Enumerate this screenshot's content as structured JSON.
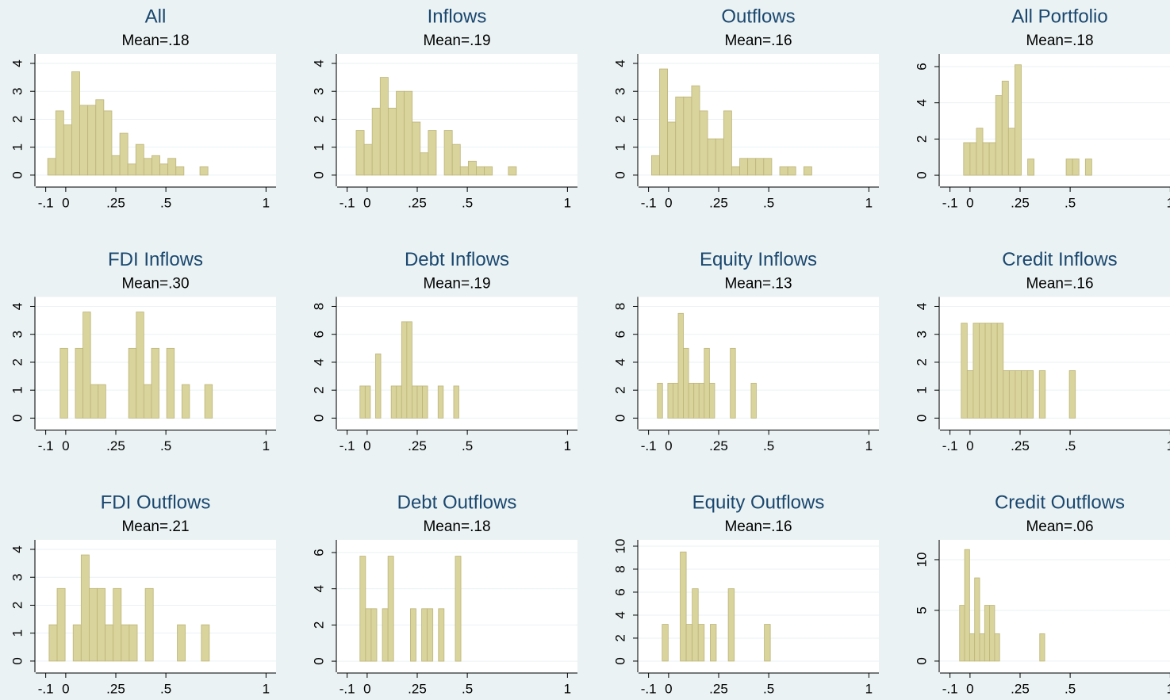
{
  "chart_data": [
    {
      "type": "histogram",
      "title": "All",
      "subtitle": "Mean=.18",
      "color": "#d9d39c",
      "grid": true,
      "bins": [
        -0.09,
        -0.05,
        -0.01,
        0.03,
        0.07,
        0.11,
        0.15,
        0.19,
        0.23,
        0.27,
        0.31,
        0.35,
        0.39,
        0.43,
        0.47,
        0.51,
        0.55,
        0.59,
        0.63,
        0.67,
        0.71
      ],
      "values": [
        0.6,
        2.3,
        1.8,
        3.7,
        2.5,
        2.5,
        2.7,
        2.3,
        0.7,
        1.5,
        0.4,
        1.1,
        0.6,
        0.7,
        0.4,
        0.6,
        0.3,
        0,
        0,
        0.3
      ],
      "xlim": [
        -0.15,
        1.05
      ],
      "xticks": [
        {
          "value": -0.1,
          "label": "-.1"
        },
        0,
        {
          "value": 0.25,
          "label": ".25"
        },
        {
          "value": 0.5,
          "label": ".5"
        },
        1
      ],
      "ylim": [
        -0.4,
        4.34
      ],
      "yticks": [
        0,
        1,
        2,
        3,
        4
      ]
    },
    {
      "type": "histogram",
      "title": "Inflows",
      "subtitle": "Mean=.19",
      "color": "#d9d39c",
      "grid": true,
      "bins": [
        -0.055,
        -0.015,
        0.025,
        0.065,
        0.105,
        0.145,
        0.185,
        0.225,
        0.265,
        0.305,
        0.345,
        0.385,
        0.425,
        0.465,
        0.505,
        0.545,
        0.585,
        0.625,
        0.665,
        0.705,
        0.745
      ],
      "values": [
        1.6,
        1.1,
        2.4,
        3.5,
        2.4,
        3.0,
        3.0,
        1.9,
        0.8,
        1.6,
        0,
        1.6,
        1.1,
        0.3,
        0.5,
        0.3,
        0.3,
        0,
        0,
        0.3
      ],
      "xlim": [
        -0.15,
        1.05
      ],
      "xticks": [
        {
          "value": -0.1,
          "label": "-.1"
        },
        0,
        {
          "value": 0.25,
          "label": ".25"
        },
        {
          "value": 0.5,
          "label": ".5"
        },
        1
      ],
      "ylim": [
        -0.4,
        4.34
      ],
      "yticks": [
        0,
        1,
        2,
        3,
        4
      ]
    },
    {
      "type": "histogram",
      "title": "Outflows",
      "subtitle": "Mean=.16",
      "color": "#d9d39c",
      "grid": true,
      "bins": [
        -0.085,
        -0.045,
        -0.005,
        0.035,
        0.075,
        0.115,
        0.155,
        0.195,
        0.235,
        0.275,
        0.315,
        0.355,
        0.395,
        0.435,
        0.475,
        0.515,
        0.555,
        0.595,
        0.635,
        0.675,
        0.715
      ],
      "values": [
        0.7,
        3.8,
        1.9,
        2.8,
        2.8,
        3.2,
        2.3,
        1.3,
        1.3,
        2.3,
        0.3,
        0.6,
        0.6,
        0.6,
        0.6,
        0,
        0.3,
        0.3,
        0,
        0.3
      ],
      "xlim": [
        -0.15,
        1.05
      ],
      "xticks": [
        {
          "value": -0.1,
          "label": "-.1"
        },
        0,
        {
          "value": 0.25,
          "label": ".25"
        },
        {
          "value": 0.5,
          "label": ".5"
        },
        1
      ],
      "ylim": [
        -0.4,
        4.34
      ],
      "yticks": [
        0,
        1,
        2,
        3,
        4
      ]
    },
    {
      "type": "histogram",
      "title": "All Portfolio",
      "subtitle": "Mean=.18",
      "color": "#d9d39c",
      "grid": true,
      "bins": [
        -0.032,
        0,
        0.032,
        0.064,
        0.096,
        0.128,
        0.16,
        0.192,
        0.224,
        0.256,
        0.288,
        0.32,
        0.352,
        0.384,
        0.416,
        0.448,
        0.48,
        0.512,
        0.544,
        0.576,
        0.608
      ],
      "values": [
        1.8,
        1.8,
        2.6,
        1.8,
        1.8,
        4.4,
        5.2,
        2.6,
        6.1,
        0,
        0.9,
        0,
        0,
        0,
        0,
        0,
        0.9,
        0.9,
        0,
        0.9
      ],
      "xlim": [
        -0.15,
        1.05
      ],
      "xticks": [
        {
          "value": -0.1,
          "label": "-.1"
        },
        0,
        {
          "value": 0.25,
          "label": ".25"
        },
        {
          "value": 0.5,
          "label": ".5"
        },
        1
      ],
      "ylim": [
        -0.61,
        6.7
      ],
      "yticks": [
        0,
        2,
        4,
        6
      ]
    },
    {
      "type": "histogram",
      "title": "FDI Inflows",
      "subtitle": "Mean=.30",
      "color": "#d9d39c",
      "grid": true,
      "bins": [
        -0.028,
        0.01,
        0.048,
        0.086,
        0.124,
        0.162,
        0.2,
        0.238,
        0.276,
        0.314,
        0.352,
        0.39,
        0.428,
        0.466,
        0.504,
        0.542,
        0.58,
        0.618,
        0.656,
        0.694,
        0.732
      ],
      "values": [
        2.5,
        0,
        2.5,
        3.8,
        1.2,
        1.2,
        0,
        0,
        0,
        2.5,
        3.8,
        1.2,
        2.5,
        0,
        2.5,
        0,
        1.2,
        0,
        0,
        1.2
      ],
      "xlim": [
        -0.15,
        1.05
      ],
      "xticks": [
        {
          "value": -0.1,
          "label": "-.1"
        },
        0,
        {
          "value": 0.25,
          "label": ".25"
        },
        {
          "value": 0.5,
          "label": ".5"
        },
        1
      ],
      "ylim": [
        -0.4,
        4.34
      ],
      "yticks": [
        0,
        1,
        2,
        3,
        4
      ]
    },
    {
      "type": "histogram",
      "title": "Debt Inflows",
      "subtitle": "Mean=.19",
      "color": "#d9d39c",
      "grid": true,
      "bins": [
        -0.036,
        -0.01,
        0.016,
        0.042,
        0.068,
        0.094,
        0.12,
        0.146,
        0.172,
        0.198,
        0.224,
        0.25,
        0.276,
        0.302,
        0.328,
        0.354,
        0.38,
        0.406,
        0.432,
        0.458
      ],
      "values": [
        2.3,
        2.3,
        0,
        4.6,
        0,
        0,
        2.3,
        2.3,
        6.9,
        6.9,
        2.3,
        2.3,
        2.3,
        0,
        0,
        2.3,
        0,
        0,
        2.3
      ],
      "xlim": [
        -0.15,
        1.05
      ],
      "xticks": [
        {
          "value": -0.1,
          "label": "-.1"
        },
        0,
        {
          "value": 0.25,
          "label": ".25"
        },
        {
          "value": 0.5,
          "label": ".5"
        },
        1
      ],
      "ylim": [
        -0.8,
        8.68
      ],
      "yticks": [
        0,
        2,
        4,
        6,
        8
      ]
    },
    {
      "type": "histogram",
      "title": "Equity Inflows",
      "subtitle": "Mean=.13",
      "color": "#d9d39c",
      "grid": true,
      "bins": [
        -0.056,
        -0.03,
        -0.004,
        0.022,
        0.048,
        0.074,
        0.1,
        0.126,
        0.152,
        0.178,
        0.204,
        0.23,
        0.256,
        0.282,
        0.308,
        0.334,
        0.36,
        0.386,
        0.412,
        0.438
      ],
      "values": [
        2.5,
        0,
        2.5,
        2.5,
        7.5,
        5,
        2.5,
        2.5,
        2.5,
        5,
        2.5,
        0,
        0,
        0,
        5,
        0,
        0,
        0,
        2.5
      ],
      "xlim": [
        -0.15,
        1.05
      ],
      "xticks": [
        {
          "value": -0.1,
          "label": "-.1"
        },
        0,
        {
          "value": 0.25,
          "label": ".25"
        },
        {
          "value": 0.5,
          "label": ".5"
        },
        1
      ],
      "ylim": [
        -0.8,
        8.68
      ],
      "yticks": [
        0,
        2,
        4,
        6,
        8
      ]
    },
    {
      "type": "histogram",
      "title": "Credit Inflows",
      "subtitle": "Mean=.16",
      "color": "#d9d39c",
      "grid": true,
      "bins": [
        -0.044,
        -0.014,
        0.016,
        0.046,
        0.076,
        0.106,
        0.136,
        0.166,
        0.196,
        0.226,
        0.256,
        0.286,
        0.316,
        0.346,
        0.376,
        0.406,
        0.436,
        0.466,
        0.496,
        0.526
      ],
      "values": [
        3.4,
        1.7,
        3.4,
        3.4,
        3.4,
        3.4,
        3.4,
        1.7,
        1.7,
        1.7,
        1.7,
        1.7,
        0,
        1.7,
        0,
        0,
        0,
        0,
        1.7
      ],
      "xlim": [
        -0.15,
        1.05
      ],
      "xticks": [
        {
          "value": -0.1,
          "label": "-.1"
        },
        0,
        {
          "value": 0.25,
          "label": ".25"
        },
        {
          "value": 0.5,
          "label": ".5"
        },
        1
      ],
      "ylim": [
        -0.4,
        4.34
      ],
      "yticks": [
        0,
        1,
        2,
        3,
        4
      ]
    },
    {
      "type": "histogram",
      "title": "FDI Outflows",
      "subtitle": "Mean=.21",
      "color": "#d9d39c",
      "grid": true,
      "bins": [
        -0.083,
        -0.043,
        -0.003,
        0.037,
        0.077,
        0.117,
        0.157,
        0.197,
        0.237,
        0.277,
        0.317,
        0.357,
        0.397,
        0.437,
        0.477,
        0.517,
        0.557,
        0.597,
        0.637,
        0.677,
        0.717
      ],
      "values": [
        1.3,
        2.6,
        0,
        1.3,
        3.8,
        2.6,
        2.6,
        1.3,
        2.6,
        1.3,
        1.3,
        0,
        2.6,
        0,
        0,
        0,
        1.3,
        0,
        0,
        1.3
      ],
      "xlim": [
        -0.15,
        1.05
      ],
      "xticks": [
        {
          "value": -0.1,
          "label": "-.1"
        },
        0,
        {
          "value": 0.25,
          "label": ".25"
        },
        {
          "value": 0.5,
          "label": ".5"
        },
        1
      ],
      "ylim": [
        -0.4,
        4.34
      ],
      "yticks": [
        0,
        1,
        2,
        3,
        4
      ]
    },
    {
      "type": "histogram",
      "title": "Debt Outflows",
      "subtitle": "Mean=.18",
      "color": "#d9d39c",
      "grid": true,
      "bins": [
        -0.036,
        -0.008,
        0.02,
        0.048,
        0.076,
        0.104,
        0.132,
        0.16,
        0.188,
        0.216,
        0.244,
        0.272,
        0.3,
        0.328,
        0.356,
        0.384,
        0.412,
        0.44,
        0.468
      ],
      "values": [
        5.8,
        2.9,
        2.9,
        0,
        2.9,
        5.8,
        0,
        0,
        0,
        2.9,
        0,
        2.9,
        2.9,
        0,
        2.9,
        0,
        0,
        5.8
      ],
      "xlim": [
        -0.15,
        1.05
      ],
      "xticks": [
        {
          "value": -0.1,
          "label": "-.1"
        },
        0,
        {
          "value": 0.25,
          "label": ".25"
        },
        {
          "value": 0.5,
          "label": ".5"
        },
        1
      ],
      "ylim": [
        -0.61,
        6.7
      ],
      "yticks": [
        0,
        2,
        4,
        6
      ]
    },
    {
      "type": "histogram",
      "title": "Equity Outflows",
      "subtitle": "Mean=.16",
      "color": "#d9d39c",
      "grid": true,
      "bins": [
        -0.032,
        -0.002,
        0.028,
        0.058,
        0.088,
        0.118,
        0.148,
        0.178,
        0.208,
        0.238,
        0.268,
        0.298,
        0.328,
        0.358,
        0.388,
        0.418,
        0.448,
        0.478,
        0.508
      ],
      "values": [
        3.2,
        0,
        0,
        9.5,
        3.2,
        6.3,
        3.2,
        0,
        3.2,
        0,
        0,
        6.3,
        0,
        0,
        0,
        0,
        0,
        3.2
      ],
      "xlim": [
        -0.15,
        1.05
      ],
      "xticks": [
        {
          "value": -0.1,
          "label": "-.1"
        },
        0,
        {
          "value": 0.25,
          "label": ".25"
        },
        {
          "value": 0.5,
          "label": ".5"
        },
        1
      ],
      "ylim": [
        -0.97,
        10.55
      ],
      "yticks": [
        0,
        2,
        4,
        6,
        8,
        10
      ]
    },
    {
      "type": "histogram",
      "title": "Credit Outflows",
      "subtitle": "Mean=.06",
      "color": "#d9d39c",
      "grid": true,
      "bins": [
        -0.052,
        -0.027,
        -0.002,
        0.023,
        0.048,
        0.073,
        0.098,
        0.123,
        0.148,
        0.173,
        0.198,
        0.223,
        0.248,
        0.273,
        0.298,
        0.323,
        0.348,
        0.373
      ],
      "values": [
        5.5,
        11,
        2.7,
        8.2,
        2.7,
        5.5,
        5.5,
        2.7,
        0,
        0,
        0,
        0,
        0,
        0,
        0,
        0,
        2.7
      ],
      "xlim": [
        -0.15,
        1.05
      ],
      "xticks": [
        {
          "value": -0.1,
          "label": "-.1"
        },
        0,
        {
          "value": 0.25,
          "label": ".25"
        },
        {
          "value": 0.5,
          "label": ".5"
        },
        1
      ],
      "ylim": [
        -1.1,
        11.95
      ],
      "yticks": [
        0,
        5,
        10
      ]
    }
  ]
}
